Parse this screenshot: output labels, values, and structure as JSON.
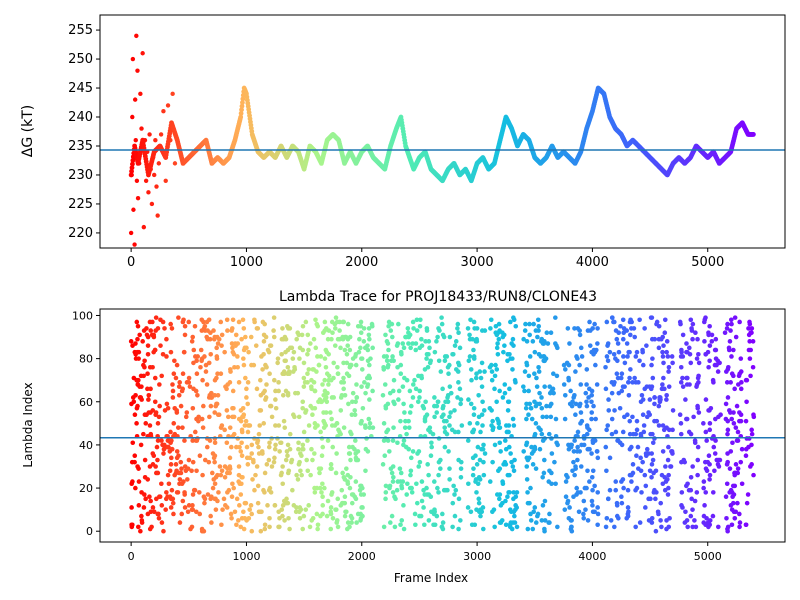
{
  "chart_data": [
    {
      "type": "scatter",
      "title": "",
      "xlabel": "",
      "ylabel": "ΔG (kT)",
      "xlim": [
        -270,
        5670
      ],
      "ylim": [
        217.4,
        257.6
      ],
      "xticks": [
        0,
        1000,
        2000,
        3000,
        4000,
        5000
      ],
      "yticks": [
        220,
        225,
        230,
        235,
        240,
        245,
        250,
        255
      ],
      "hline": 234.3,
      "hline_color": "#1f77b4",
      "colormap": "rainbow (red → violet along frame index)",
      "x_max": 5400,
      "series": [
        {
          "x": [
            0,
            30,
            60,
            100,
            150,
            200,
            250,
            300,
            350,
            400,
            450,
            500,
            550,
            600,
            650,
            700,
            750,
            800,
            850,
            900,
            950,
            980,
            1000,
            1050,
            1100,
            1150,
            1200,
            1250,
            1300,
            1350,
            1400,
            1450,
            1500,
            1550,
            1600,
            1650,
            1700,
            1750,
            1800,
            1850,
            1900,
            1950,
            2000,
            2050,
            2100,
            2150,
            2200,
            2250,
            2300,
            2340,
            2380,
            2450,
            2500,
            2550,
            2600,
            2650,
            2700,
            2750,
            2800,
            2850,
            2900,
            2950,
            3000,
            3050,
            3100,
            3150,
            3200,
            3250,
            3300,
            3350,
            3400,
            3450,
            3500,
            3550,
            3600,
            3650,
            3700,
            3750,
            3800,
            3850,
            3900,
            3950,
            4000,
            4050,
            4100,
            4150,
            4200,
            4250,
            4300,
            4350,
            4400,
            4450,
            4500,
            4550,
            4600,
            4650,
            4700,
            4750,
            4800,
            4850,
            4900,
            4950,
            5000,
            5050,
            5100,
            5150,
            5200,
            5250,
            5300,
            5350,
            5400
          ],
          "values": [
            230,
            235,
            232,
            236,
            230,
            234,
            235,
            233,
            239,
            236,
            232,
            233,
            234,
            235,
            236,
            232,
            233,
            232,
            233,
            236,
            240,
            245,
            244,
            237,
            234,
            233,
            234,
            233,
            235,
            233,
            235,
            234,
            231,
            235,
            234,
            232,
            236,
            237,
            236,
            232,
            234,
            232,
            234,
            235,
            233,
            232,
            231,
            235,
            238,
            240,
            235,
            231,
            233,
            234,
            231,
            230,
            229,
            231,
            232,
            230,
            231,
            229,
            232,
            233,
            231,
            232,
            236,
            240,
            238,
            235,
            237,
            236,
            233,
            232,
            233,
            235,
            233,
            234,
            233,
            232,
            234,
            238,
            241,
            245,
            244,
            240,
            238,
            237,
            235,
            236,
            235,
            234,
            233,
            232,
            231,
            230,
            232,
            233,
            232,
            233,
            235,
            234,
            233,
            234,
            232,
            233,
            234,
            238,
            239,
            237,
            237
          ],
          "scatter_x": [
            0,
            5,
            10,
            15,
            20,
            25,
            30,
            35,
            40,
            45,
            50,
            55,
            60,
            70,
            80,
            90,
            100,
            110,
            120,
            130,
            140,
            150,
            160,
            170,
            180,
            190,
            200,
            210,
            220,
            230,
            240,
            260,
            280,
            300,
            320,
            340,
            360,
            380
          ],
          "scatter_y": [
            220,
            230,
            240,
            250,
            224,
            233,
            218,
            243,
            236,
            254,
            229,
            248,
            226,
            232,
            244,
            238,
            251,
            221,
            236,
            229,
            234,
            227,
            237,
            231,
            225,
            233,
            230,
            236,
            228,
            223,
            232,
            237,
            241,
            229,
            242,
            236,
            244,
            232
          ]
        }
      ]
    },
    {
      "type": "scatter",
      "title": "Lambda Trace for PROJ18433/RUN8/CLONE43",
      "xlabel": "Frame Index",
      "ylabel": "Lambda Index",
      "xlim": [
        -270,
        5670
      ],
      "ylim": [
        -5,
        103
      ],
      "xticks": [
        0,
        1000,
        2000,
        3000,
        4000,
        5000
      ],
      "yticks": [
        0,
        20,
        40,
        60,
        80,
        100
      ],
      "hline": 43.3,
      "hline_color": "#1f77b4",
      "colormap": "rainbow (red → violet along frame index)",
      "x_max": 5400,
      "point_count": 2600,
      "y_range": [
        0,
        99
      ],
      "gap_regions": [
        [
          2100,
          2180
        ],
        [
          2870,
          2920
        ],
        [
          3070,
          3110
        ],
        [
          3350,
          3400
        ],
        [
          3700,
          3750
        ],
        [
          4050,
          4110
        ],
        [
          4700,
          4760
        ],
        [
          4930,
          4960
        ],
        [
          5120,
          5150
        ],
        [
          5300,
          5330
        ]
      ]
    }
  ]
}
